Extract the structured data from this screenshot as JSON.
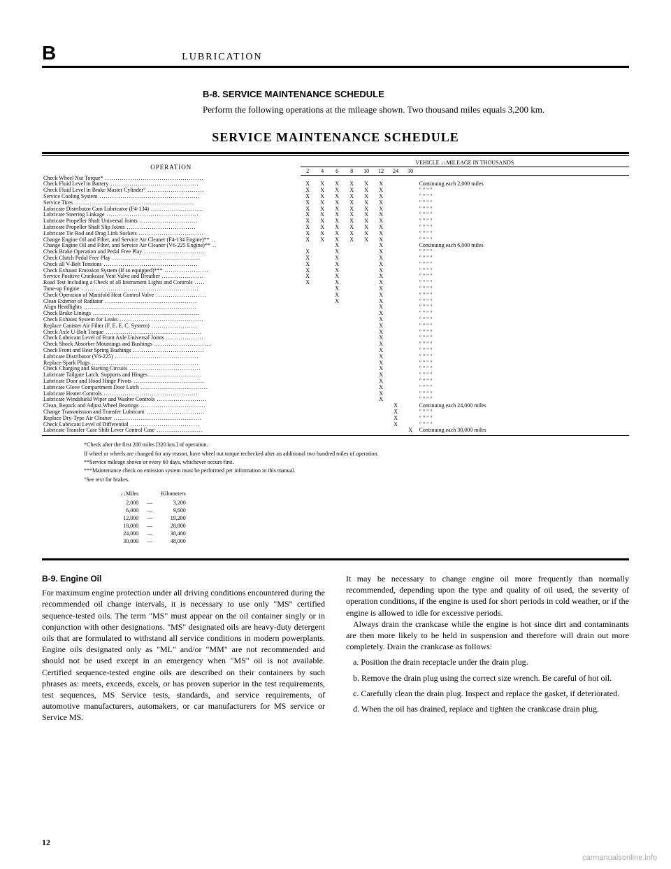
{
  "section_letter": "B",
  "section_title": "LUBRICATION",
  "sub_heading": "B-8. SERVICE MAINTENANCE SCHEDULE",
  "intro_text": "Perform the following operations at the mileage shown. Two thousand miles equals 3,200 km.",
  "main_heading": "SERVICE MAINTENANCE SCHEDULE",
  "table": {
    "operation_label": "OPERATION",
    "mileage_label": "VEHICLE ↓↓MILEAGE IN THOUSANDS",
    "mileage_cols": [
      "2",
      "4",
      "6",
      "8",
      "10",
      "12",
      "24",
      "30"
    ],
    "rows": [
      {
        "op": "Check Wheel Nut Torque*",
        "marks": [
          "",
          "",
          "",
          "",
          "",
          "",
          "",
          ""
        ],
        "cont": ""
      },
      {
        "op": "Check Fluid Level in Battery",
        "marks": [
          "X",
          "X",
          "X",
          "X",
          "X",
          "X",
          "",
          ""
        ],
        "cont": "Continuing each 2,000 miles"
      },
      {
        "op": "Check Fluid Level in Brake Master Cylinder°",
        "marks": [
          "X",
          "X",
          "X",
          "X",
          "X",
          "X",
          "",
          ""
        ],
        "cont": "\"      \"      \"      \""
      },
      {
        "op": "Service Cooling System",
        "marks": [
          "X",
          "X",
          "X",
          "X",
          "X",
          "X",
          "",
          ""
        ],
        "cont": "\"      \"      \"      \""
      },
      {
        "op": "Service Tires",
        "marks": [
          "X",
          "X",
          "X",
          "X",
          "X",
          "X",
          "",
          ""
        ],
        "cont": "\"      \"      \"      \""
      },
      {
        "op": "Lubricate Distributor Cam Lubricator (F4-134)",
        "marks": [
          "X",
          "X",
          "X",
          "X",
          "X",
          "X",
          "",
          ""
        ],
        "cont": "\"      \"      \"      \""
      },
      {
        "op": "Lubricate Steering Linkage",
        "marks": [
          "X",
          "X",
          "X",
          "X",
          "X",
          "X",
          "",
          ""
        ],
        "cont": "\"      \"      \"      \""
      },
      {
        "op": "Lubricate Propeller Shaft Universal Joints",
        "marks": [
          "X",
          "X",
          "X",
          "X",
          "X",
          "X",
          "",
          ""
        ],
        "cont": "\"      \"      \"      \""
      },
      {
        "op": "Lubricate Propeller Shaft Slip Joints",
        "marks": [
          "X",
          "X",
          "X",
          "X",
          "X",
          "X",
          "",
          ""
        ],
        "cont": "\"      \"      \"      \""
      },
      {
        "op": "Lubricate Tie Rod and Drag Link Sockets",
        "marks": [
          "X",
          "X",
          "X",
          "X",
          "X",
          "X",
          "",
          ""
        ],
        "cont": "\"      \"      \"      \""
      },
      {
        "op": "Change Engine Oil and Filter, and Service Air Cleaner (F4-134 Engine)**",
        "marks": [
          "X",
          "X",
          "X",
          "X",
          "X",
          "X",
          "",
          ""
        ],
        "cont": "\"      \"      \"      \""
      },
      {
        "op": "Change Engine Oil and Filter, and Service Air Cleaner (V6-225 Engine)**",
        "marks": [
          "",
          "",
          "X",
          "",
          "",
          "X",
          "",
          ""
        ],
        "cont": "Continuing each 6,000 miles"
      },
      {
        "op": "Check Brake Operation and Pedal Free Play",
        "marks": [
          "X",
          "",
          "X",
          "",
          "",
          "X",
          "",
          ""
        ],
        "cont": "\"      \"      \"      \""
      },
      {
        "op": "Check Clutch Pedal Free Play",
        "marks": [
          "X",
          "",
          "X",
          "",
          "",
          "X",
          "",
          ""
        ],
        "cont": "\"      \"      \"      \""
      },
      {
        "op": "Check all V-Belt Tensions",
        "marks": [
          "X",
          "",
          "X",
          "",
          "",
          "X",
          "",
          ""
        ],
        "cont": "\"      \"      \"      \""
      },
      {
        "op": "Check Exhaust Emission System (If so equipped)***",
        "marks": [
          "X",
          "",
          "X",
          "",
          "",
          "X",
          "",
          ""
        ],
        "cont": "\"      \"      \"      \""
      },
      {
        "op": "Service Positive Crankcase Vent Valve and Breather",
        "marks": [
          "X",
          "",
          "X",
          "",
          "",
          "X",
          "",
          ""
        ],
        "cont": "\"      \"      \"      \""
      },
      {
        "op": "Road Test Including a Check of all Instrument Lights and Controls",
        "marks": [
          "X",
          "",
          "X",
          "",
          "",
          "X",
          "",
          ""
        ],
        "cont": "\"      \"      \"      \""
      },
      {
        "op": "Tune-up Engine",
        "marks": [
          "",
          "",
          "X",
          "",
          "",
          "X",
          "",
          ""
        ],
        "cont": "\"      \"      \"      \""
      },
      {
        "op": "Check Operation of Manifold Heat Control Valve",
        "marks": [
          "",
          "",
          "X",
          "",
          "",
          "X",
          "",
          ""
        ],
        "cont": "\"      \"      \"      \""
      },
      {
        "op": "Clean Exterior of Radiator",
        "marks": [
          "",
          "",
          "X",
          "",
          "",
          "X",
          "",
          ""
        ],
        "cont": "\"      \"      \"      \""
      },
      {
        "op": "Align Headlights",
        "marks": [
          "",
          "",
          "",
          "",
          "",
          "X",
          "",
          ""
        ],
        "cont": "\"      \"      \"      \""
      },
      {
        "op": "Check Brake Linings",
        "marks": [
          "",
          "",
          "",
          "",
          "",
          "X",
          "",
          ""
        ],
        "cont": "\"      \"      \"      \""
      },
      {
        "op": "Check Exhaust System for Leaks",
        "marks": [
          "",
          "",
          "",
          "",
          "",
          "X",
          "",
          ""
        ],
        "cont": "\"      \"      \"      \""
      },
      {
        "op": "Replace Canister Air Filter (F. E. E. C. System)",
        "marks": [
          "",
          "",
          "",
          "",
          "",
          "X",
          "",
          ""
        ],
        "cont": "\"      \"      \"      \""
      },
      {
        "op": "Check Axle U-Bolt Torque",
        "marks": [
          "",
          "",
          "",
          "",
          "",
          "X",
          "",
          ""
        ],
        "cont": "\"      \"      \"      \""
      },
      {
        "op": "Check Lubricant Level of Front Axle Universal Joints",
        "marks": [
          "",
          "",
          "",
          "",
          "",
          "X",
          "",
          ""
        ],
        "cont": "\"      \"      \"      \""
      },
      {
        "op": "Check Shock Absorber Mountings and Bushings",
        "marks": [
          "",
          "",
          "",
          "",
          "",
          "X",
          "",
          ""
        ],
        "cont": "\"      \"      \"      \""
      },
      {
        "op": "Check Front and Rear Spring Bushings",
        "marks": [
          "",
          "",
          "",
          "",
          "",
          "X",
          "",
          ""
        ],
        "cont": "\"      \"      \"      \""
      },
      {
        "op": "Lubricate Distributor (V6-225)",
        "marks": [
          "",
          "",
          "",
          "",
          "",
          "X",
          "",
          ""
        ],
        "cont": "\"      \"      \"      \""
      },
      {
        "op": "Replace Spark Plugs",
        "marks": [
          "",
          "",
          "",
          "",
          "",
          "X",
          "",
          ""
        ],
        "cont": "\"      \"      \"      \""
      },
      {
        "op": "Check Charging and Starting Circuits",
        "marks": [
          "",
          "",
          "",
          "",
          "",
          "X",
          "",
          ""
        ],
        "cont": "\"      \"      \"      \""
      },
      {
        "op": "Lubricate Tailgate Latch, Supports and Hinges",
        "marks": [
          "",
          "",
          "",
          "",
          "",
          "X",
          "",
          ""
        ],
        "cont": "\"      \"      \"      \""
      },
      {
        "op": "Lubricate Door and Hood Hinge Pivots",
        "marks": [
          "",
          "",
          "",
          "",
          "",
          "X",
          "",
          ""
        ],
        "cont": "\"      \"      \"      \""
      },
      {
        "op": "Lubricate Glove Compartment Door Latch",
        "marks": [
          "",
          "",
          "",
          "",
          "",
          "X",
          "",
          ""
        ],
        "cont": "\"      \"      \"      \""
      },
      {
        "op": "Lubricate Heater Controls",
        "marks": [
          "",
          "",
          "",
          "",
          "",
          "X",
          "",
          ""
        ],
        "cont": "\"      \"      \"      \""
      },
      {
        "op": "Lubricate Windshield Wiper and Washer Controls",
        "marks": [
          "",
          "",
          "",
          "",
          "",
          "X",
          "",
          ""
        ],
        "cont": "\"      \"      \"      \""
      },
      {
        "op": "Clean, Repack and Adjust Wheel Bearings",
        "marks": [
          "",
          "",
          "",
          "",
          "",
          "",
          "X",
          ""
        ],
        "cont": "Continuing each 24,000 miles"
      },
      {
        "op": "Change Transmission and Transfer Lubricant",
        "marks": [
          "",
          "",
          "",
          "",
          "",
          "",
          "X",
          ""
        ],
        "cont": "\"      \"      \"      \""
      },
      {
        "op": "Replace Dry-Type Air Cleaner",
        "marks": [
          "",
          "",
          "",
          "",
          "",
          "",
          "X",
          ""
        ],
        "cont": "\"      \"      \"      \""
      },
      {
        "op": "Check Lubricant Level of Differential",
        "marks": [
          "",
          "",
          "",
          "",
          "",
          "",
          "X",
          ""
        ],
        "cont": "\"      \"      \"      \""
      },
      {
        "op": "Lubricate Transfer Case Shift Lever Control Case",
        "marks": [
          "",
          "",
          "",
          "",
          "",
          "",
          "",
          "X"
        ],
        "cont": "Continuing each 30,000 miles"
      }
    ]
  },
  "footnotes": [
    "*Check after the first 200 miles [320 km.] of operation.",
    "If wheel or wheels are changed for any reason, have wheel nut torque rechecked after an additional two hundred miles of operation.",
    "**Service mileage shown or every 60 days, whichever occurs first.",
    "***Maintenance check on emission system must be performed per information in this manual.",
    "°See text for brakes."
  ],
  "km_table": {
    "header": [
      "↓↓Miles",
      "",
      "Kilometers"
    ],
    "rows": [
      [
        "2,000",
        "—",
        "3,200"
      ],
      [
        "6,000",
        "—",
        "9,600"
      ],
      [
        "12,000",
        "—",
        "19,200"
      ],
      [
        "18,000",
        "—",
        "28,800"
      ],
      [
        "24,000",
        "—",
        "38,400"
      ],
      [
        "30,000",
        "—",
        "48,000"
      ]
    ]
  },
  "body": {
    "b9_heading": "B-9. Engine Oil",
    "left_col": "For maximum engine protection under all driving conditions encountered during the recommended oil change intervals, it is necessary to use only \"MS\" certified sequence-tested oils. The term \"MS\" must appear on the oil container singly or in conjunction with other designations. \"MS\" designated oils are heavy-duty detergent oils that are formulated to withstand all service conditions in modern powerplants. Engine oils designated only as \"ML\" and/or \"MM\" are not recommended and should not be used except in an emergency when \"MS\" oil is not available. Certified sequence-tested engine oils are described on their containers by such phrases as: meets, exceeds, excels, or has proven superior in the test requirements, test sequences, MS Service tests, standards, and service requirements, of automotive manufacturers, automakers, or car manufacturers for MS service or Service MS.",
    "right_p1": "It may be necessary to change engine oil more frequently than normally recommended, depending upon the type and quality of oil used, the severity of operation conditions, if the engine is used for short periods in cold weather, or if the engine is allowed to idle for excessive periods.",
    "right_p2": "Always drain the crankcase while the engine is hot since dirt and contaminants are then more likely to be held in suspension and therefore will drain out more completely. Drain the crankcase as follows:",
    "step_a": "a. Position the drain receptacle under the drain plug.",
    "step_b": "b. Remove the drain plug using the correct size wrench. Be careful of hot oil.",
    "step_c": "c. Carefully clean the drain plug. Inspect and replace the gasket, if deteriorated.",
    "step_d": "d. When the oil has drained, replace and tighten the crankcase drain plug."
  },
  "page_number": "12",
  "watermark": "carmanualsonline.info"
}
